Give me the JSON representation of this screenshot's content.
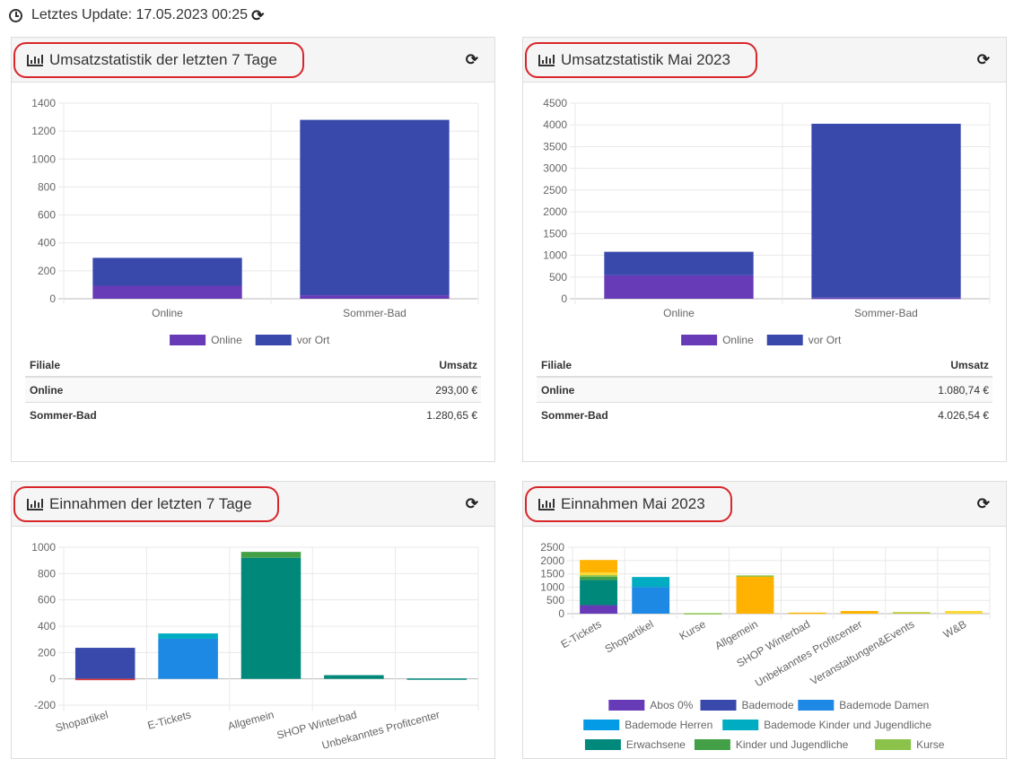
{
  "header": {
    "last_update": "Letztes Update: 17.05.2023 00:25"
  },
  "colors": {
    "online": "#673ab7",
    "vor_ort": "#3949ab",
    "title_outline": "#d8262b"
  },
  "panels": {
    "p1": {
      "title": "Umsatzstatistik der letzten 7 Tage",
      "chart_data": {
        "type": "bar",
        "stacked": true,
        "categories": [
          "Online",
          "Sommer-Bad"
        ],
        "series": [
          {
            "name": "Online",
            "color": "#673ab7",
            "values": [
              93,
              25
            ]
          },
          {
            "name": "vor Ort",
            "color": "#3949ab",
            "values": [
              200,
              1255.65
            ]
          }
        ],
        "ylim": [
          0,
          1400
        ],
        "yticks": [
          0,
          200,
          400,
          600,
          800,
          1000,
          1200,
          1400
        ],
        "grid": true,
        "legend": "bottom"
      },
      "table": {
        "headers": [
          "Filiale",
          "Umsatz"
        ],
        "rows": [
          {
            "name": "Online",
            "value": "293,00 €"
          },
          {
            "name": "Sommer-Bad",
            "value": "1.280,65 €"
          }
        ]
      }
    },
    "p2": {
      "title": "Umsatzstatistik Mai 2023",
      "chart_data": {
        "type": "bar",
        "stacked": true,
        "categories": [
          "Online",
          "Sommer-Bad"
        ],
        "series": [
          {
            "name": "Online",
            "color": "#673ab7",
            "values": [
              540,
              25
            ]
          },
          {
            "name": "vor Ort",
            "color": "#3949ab",
            "values": [
              540.74,
              4001.54
            ]
          }
        ],
        "ylim": [
          0,
          4500
        ],
        "yticks": [
          0,
          500,
          1000,
          1500,
          2000,
          2500,
          3000,
          3500,
          4000,
          4500
        ],
        "grid": true,
        "legend": "bottom"
      },
      "table": {
        "headers": [
          "Filiale",
          "Umsatz"
        ],
        "rows": [
          {
            "name": "Online",
            "value": "1.080,74 €"
          },
          {
            "name": "Sommer-Bad",
            "value": "4.026,54 €"
          }
        ]
      }
    },
    "p3": {
      "title": "Einnahmen der letzten 7 Tage",
      "chart_data": {
        "type": "bar",
        "stacked": true,
        "categories": [
          "Shopartikel",
          "E-Tickets",
          "Allgemein",
          "SHOP Winterbad",
          "Unbekanntes Profitcenter"
        ],
        "segments": [
          [
            {
              "color": "#3949ab",
              "value": 236
            },
            {
              "color": "#e53935",
              "value": -3
            }
          ],
          [
            {
              "color": "#1e88e5",
              "value": 305
            },
            {
              "color": "#00acc1",
              "value": 40
            }
          ],
          [
            {
              "color": "#00897b",
              "value": 920
            },
            {
              "color": "#43a047",
              "value": 45
            }
          ],
          [
            {
              "color": "#00897b",
              "value": 28
            }
          ],
          [
            {
              "color": "#00897b",
              "value": 3
            }
          ]
        ],
        "ylim": [
          -200,
          1000
        ],
        "yticks": [
          -200,
          0,
          200,
          400,
          600,
          800,
          1000
        ],
        "grid": true
      }
    },
    "p4": {
      "title": "Einnahmen Mai 2023",
      "chart_data": {
        "type": "bar",
        "stacked": true,
        "categories": [
          "E-Tickets",
          "Shopartikel",
          "Kurse",
          "Allgemein",
          "SHOP Winterbad",
          "Unbekanntes Profitcenter",
          "Veranstaltungen&Events",
          "W&B"
        ],
        "segments": [
          [
            {
              "color": "#673ab7",
              "value": 320
            },
            {
              "color": "#00897b",
              "value": 950
            },
            {
              "color": "#43a047",
              "value": 120
            },
            {
              "color": "#8bc34a",
              "value": 60
            },
            {
              "color": "#fdd835",
              "value": 100
            },
            {
              "color": "#ffb300",
              "value": 470
            }
          ],
          [
            {
              "color": "#1e88e5",
              "value": 1000
            },
            {
              "color": "#00acc1",
              "value": 380
            }
          ],
          [
            {
              "color": "#8bc34a",
              "value": 20
            }
          ],
          [
            {
              "color": "#ffb300",
              "value": 1400
            },
            {
              "color": "#8bc34a",
              "value": 40
            }
          ],
          [
            {
              "color": "#ffb300",
              "value": 40
            }
          ],
          [
            {
              "color": "#ffb300",
              "value": 100
            }
          ],
          [
            {
              "color": "#c0ca33",
              "value": 60
            }
          ],
          [
            {
              "color": "#fdd835",
              "value": 100
            }
          ]
        ],
        "ylim": [
          0,
          2500
        ],
        "yticks": [
          0,
          500,
          1000,
          1500,
          2000,
          2500
        ],
        "grid": true,
        "legend": "bottom",
        "legend_entries": [
          {
            "name": "Abos 0%",
            "color": "#673ab7"
          },
          {
            "name": "Bademode",
            "color": "#3949ab"
          },
          {
            "name": "Bademode Damen",
            "color": "#1e88e5"
          },
          {
            "name": "Bademode Herren",
            "color": "#039be5"
          },
          {
            "name": "Bademode Kinder und Jugendliche",
            "color": "#00acc1"
          },
          {
            "name": "Erwachsene",
            "color": "#00897b"
          },
          {
            "name": "Kinder und Jugendliche",
            "color": "#43a047"
          },
          {
            "name": "Kurse",
            "color": "#8bc34a"
          }
        ]
      }
    }
  }
}
